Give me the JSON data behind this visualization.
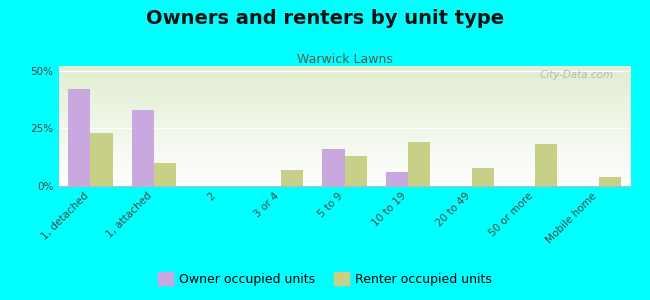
{
  "title": "Owners and renters by unit type",
  "subtitle": "Warwick Lawns",
  "categories": [
    "1, detached",
    "1, attached",
    "2",
    "3 or 4",
    "5 to 9",
    "10 to 19",
    "20 to 49",
    "50 or more",
    "Mobile home"
  ],
  "owner_values": [
    42,
    33,
    0,
    0,
    16,
    6,
    0,
    0,
    0
  ],
  "renter_values": [
    23,
    10,
    0,
    7,
    13,
    19,
    8,
    18,
    4
  ],
  "owner_color": "#c9a8e0",
  "renter_color": "#c8cf87",
  "background_color": "#00ffff",
  "ylim": [
    0,
    52
  ],
  "yticks": [
    0,
    25,
    50
  ],
  "ytick_labels": [
    "0%",
    "25%",
    "50%"
  ],
  "bar_width": 0.35,
  "title_fontsize": 14,
  "subtitle_fontsize": 9,
  "tick_fontsize": 7.5,
  "legend_fontsize": 9,
  "watermark": "City-Data.com"
}
